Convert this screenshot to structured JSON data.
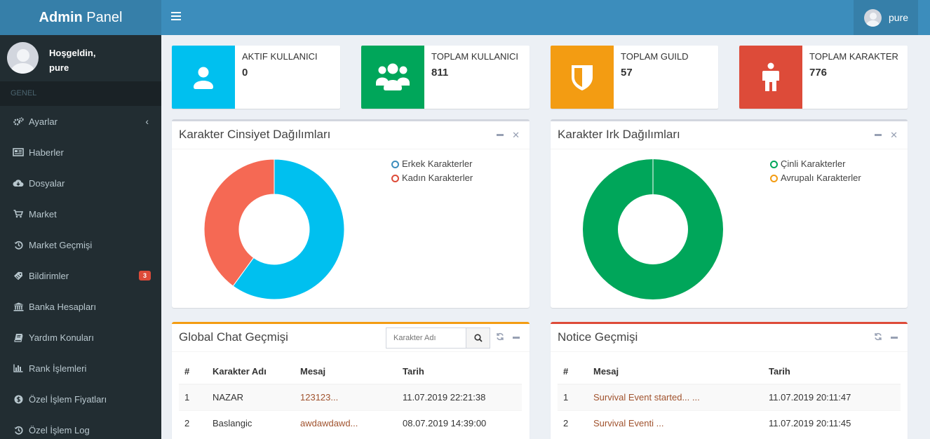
{
  "header": {
    "logo_bold": "Admin",
    "logo_rest": " Panel",
    "user_name": "pure"
  },
  "sidebar": {
    "welcome": "Hoşgeldin,",
    "user": "pure",
    "section": "GENEL",
    "items": [
      {
        "label": "Ayarlar",
        "icon": "gears-icon"
      },
      {
        "label": "Haberler",
        "icon": "newspaper-icon"
      },
      {
        "label": "Dosyalar",
        "icon": "cloud-download-icon"
      },
      {
        "label": "Market",
        "icon": "cart-icon"
      },
      {
        "label": "Market Geçmişi",
        "icon": "history-icon"
      },
      {
        "label": "Bildirimler",
        "icon": "tag-icon",
        "badge": "3"
      },
      {
        "label": "Banka Hesapları",
        "icon": "bank-icon"
      },
      {
        "label": "Yardım Konuları",
        "icon": "book-icon"
      },
      {
        "label": "Rank İşlemleri",
        "icon": "bar-chart-icon"
      },
      {
        "label": "Özel İşlem Fiyatları",
        "icon": "coin-icon"
      },
      {
        "label": "Özel İşlem Log",
        "icon": "history-icon"
      }
    ]
  },
  "stats": [
    {
      "label": "AKTIF KULLANICI",
      "value": "0",
      "color": "#00c0ef",
      "icon": "user-icon"
    },
    {
      "label": "TOPLAM KULLANICI",
      "value": "811",
      "color": "#00a65a",
      "icon": "users-icon"
    },
    {
      "label": "TOPLAM GUILD",
      "value": "57",
      "color": "#f39c12",
      "icon": "shield-icon"
    },
    {
      "label": "TOPLAM KARAKTER",
      "value": "776",
      "color": "#dd4b39",
      "icon": "person-icon"
    }
  ],
  "gender_box": {
    "title": "Karakter Cinsiyet Dağılımları",
    "chart_data": {
      "type": "pie",
      "donut": true,
      "categories": [
        "Erkek Karakterler",
        "Kadın Karakterler"
      ],
      "values": [
        60,
        40
      ],
      "colors": [
        "#00c0ef",
        "#f56954"
      ],
      "legend": "top-right"
    }
  },
  "race_box": {
    "title": "Karakter Irk Dağılımları",
    "chart_data": {
      "type": "pie",
      "donut": true,
      "categories": [
        "Çinli Karakterler",
        "Avrupalı Karakterler"
      ],
      "values": [
        100,
        0
      ],
      "colors": [
        "#00a65a",
        "#f39c12"
      ],
      "legend": "top-right"
    }
  },
  "chat_box": {
    "title": "Global Chat Geçmişi",
    "search_placeholder": "Karakter Adı",
    "columns": [
      "#",
      "Karakter Adı",
      "Mesaj",
      "Tarih"
    ],
    "rows": [
      [
        "1",
        "NAZAR",
        "123123...",
        "11.07.2019 22:21:38"
      ],
      [
        "2",
        "Baslangic",
        "awdawdawd...",
        "08.07.2019 14:39:00"
      ]
    ]
  },
  "notice_box": {
    "title": "Notice Geçmişi",
    "columns": [
      "#",
      "Mesaj",
      "Tarih"
    ],
    "rows": [
      [
        "1",
        "Survival Event started... ...",
        "11.07.2019 20:11:47"
      ],
      [
        "2",
        "Survival Eventi ...",
        "11.07.2019 20:11:45"
      ]
    ]
  }
}
